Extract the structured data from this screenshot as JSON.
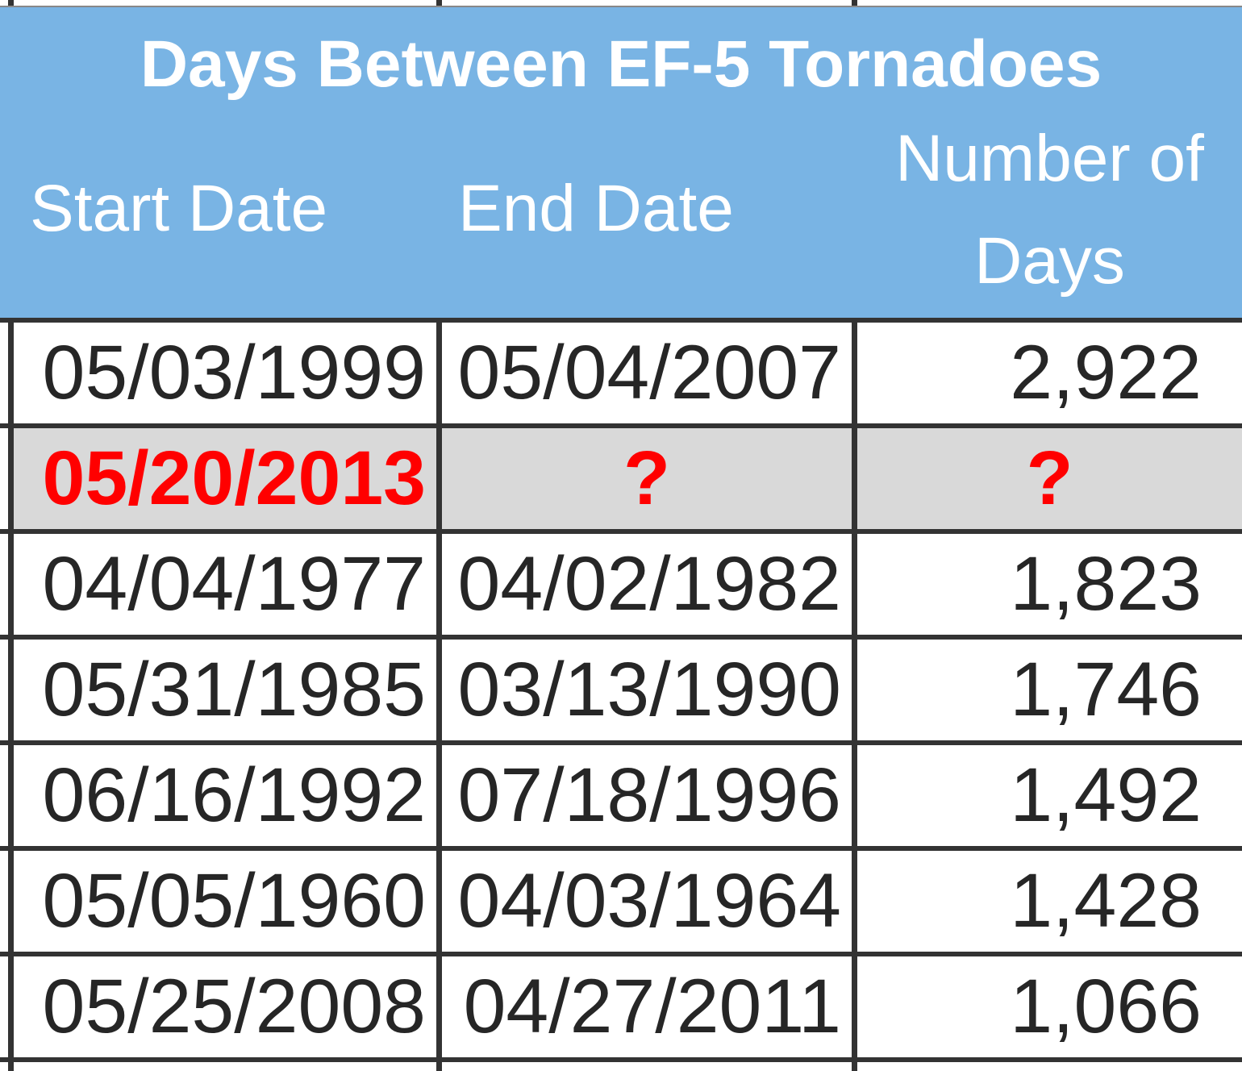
{
  "table": {
    "title": "Days Between EF-5 Tornadoes",
    "columns": {
      "start": "Start Date",
      "end": "End Date",
      "days_line1": "Number of",
      "days_line2": "Days"
    },
    "rows": [
      {
        "start_date": "05/03/1999",
        "end_date": "05/04/2007",
        "num_days": "2,922",
        "highlight": false
      },
      {
        "start_date": "05/20/2013",
        "end_date": "?",
        "num_days": "?",
        "highlight": true
      },
      {
        "start_date": "04/04/1977",
        "end_date": "04/02/1982",
        "num_days": "1,823",
        "highlight": false
      },
      {
        "start_date": "05/31/1985",
        "end_date": "03/13/1990",
        "num_days": "1,746",
        "highlight": false
      },
      {
        "start_date": "06/16/1992",
        "end_date": "07/18/1996",
        "num_days": "1,492",
        "highlight": false
      },
      {
        "start_date": "05/05/1960",
        "end_date": "04/03/1964",
        "num_days": "1,428",
        "highlight": false
      },
      {
        "start_date": "05/25/2008",
        "end_date": "04/27/2011",
        "num_days": "1,066",
        "highlight": false
      }
    ],
    "colors": {
      "header_blue": "#79B4E4",
      "highlight_gray": "#D9D9D9",
      "alert_red": "#FF0000",
      "border_dark": "#333333",
      "text_dark": "#262626",
      "header_text": "#FFFFFF"
    }
  }
}
